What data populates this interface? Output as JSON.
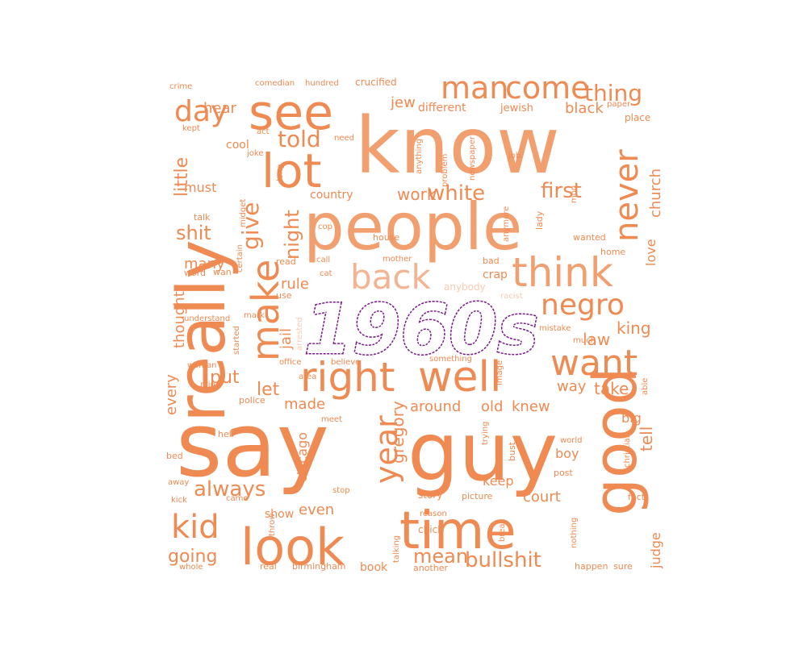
{
  "center_word": {
    "text": "1960s",
    "color": "#7a1a8c"
  },
  "palette": {
    "dark": "#ee8a52",
    "mid": "#f19f6e",
    "light": "#f4b493",
    "pale": "#f8cbb4"
  },
  "words": [
    {
      "text": "know",
      "tone": "mid"
    },
    {
      "text": "people",
      "tone": "mid"
    },
    {
      "text": "say",
      "tone": "dark"
    },
    {
      "text": "guy",
      "tone": "dark"
    },
    {
      "text": "see",
      "tone": "dark"
    },
    {
      "text": "really",
      "tone": "dark"
    },
    {
      "text": "look",
      "tone": "dark"
    },
    {
      "text": "time",
      "tone": "dark"
    },
    {
      "text": "good",
      "tone": "dark"
    },
    {
      "text": "lot",
      "tone": "dark"
    },
    {
      "text": "think",
      "tone": "mid"
    },
    {
      "text": "right",
      "tone": "dark"
    },
    {
      "text": "well",
      "tone": "dark"
    },
    {
      "text": "want",
      "tone": "dark"
    },
    {
      "text": "back",
      "tone": "light"
    },
    {
      "text": "make",
      "tone": "dark"
    },
    {
      "text": "man",
      "tone": "dark"
    },
    {
      "text": "come",
      "tone": "dark"
    },
    {
      "text": "day",
      "tone": "dark"
    },
    {
      "text": "negro",
      "tone": "dark"
    },
    {
      "text": "never",
      "tone": "dark"
    },
    {
      "text": "kid",
      "tone": "dark"
    },
    {
      "text": "year",
      "tone": "dark"
    },
    {
      "text": "give",
      "tone": "dark"
    },
    {
      "text": "told",
      "tone": "dark"
    },
    {
      "text": "thing",
      "tone": "dark"
    },
    {
      "text": "bullshit",
      "tone": "dark"
    },
    {
      "text": "work",
      "tone": "dark"
    },
    {
      "text": "white",
      "tone": "dark"
    },
    {
      "text": "first",
      "tone": "dark"
    },
    {
      "text": "always",
      "tone": "dark"
    },
    {
      "text": "mean",
      "tone": "dark"
    },
    {
      "text": "night",
      "tone": "dark"
    },
    {
      "text": "shit",
      "tone": "dark"
    },
    {
      "text": "little",
      "tone": "dark"
    },
    {
      "text": "let",
      "tone": "dark"
    },
    {
      "text": "put",
      "tone": "dark"
    },
    {
      "text": "going",
      "tone": "dark"
    },
    {
      "text": "law",
      "tone": "dark"
    },
    {
      "text": "king",
      "tone": "dark"
    },
    {
      "text": "take",
      "tone": "dark"
    },
    {
      "text": "tell",
      "tone": "dark"
    },
    {
      "text": "gregory",
      "tone": "dark"
    },
    {
      "text": "around",
      "tone": "dark"
    },
    {
      "text": "old",
      "tone": "dark"
    },
    {
      "text": "knew",
      "tone": "dark"
    },
    {
      "text": "court",
      "tone": "dark"
    },
    {
      "text": "many",
      "tone": "dark"
    },
    {
      "text": "every",
      "tone": "dark"
    },
    {
      "text": "thought",
      "tone": "dark"
    },
    {
      "text": "rule",
      "tone": "dark"
    },
    {
      "text": "jail",
      "tone": "dark"
    },
    {
      "text": "made",
      "tone": "dark"
    },
    {
      "text": "chicago",
      "tone": "dark"
    },
    {
      "text": "even",
      "tone": "dark"
    },
    {
      "text": "keep",
      "tone": "dark"
    },
    {
      "text": "way",
      "tone": "dark"
    },
    {
      "text": "black",
      "tone": "dark"
    },
    {
      "text": "jew",
      "tone": "dark"
    },
    {
      "text": "hear",
      "tone": "dark"
    },
    {
      "text": "church",
      "tone": "dark"
    },
    {
      "text": "love",
      "tone": "dark"
    },
    {
      "text": "judge",
      "tone": "dark"
    },
    {
      "text": "big",
      "tone": "dark"
    },
    {
      "text": "boy",
      "tone": "dark"
    },
    {
      "text": "must",
      "tone": "dark"
    },
    {
      "text": "country",
      "tone": "dark"
    },
    {
      "text": "cool",
      "tone": "dark"
    },
    {
      "text": "crap",
      "tone": "dark"
    },
    {
      "text": "show",
      "tone": "dark"
    },
    {
      "text": "book",
      "tone": "dark"
    },
    {
      "text": "story",
      "tone": "dark"
    },
    {
      "text": "chick",
      "tone": "dark"
    },
    {
      "text": "different",
      "tone": "dark"
    },
    {
      "text": "jewish",
      "tone": "dark"
    },
    {
      "text": "crime",
      "tone": "dark"
    },
    {
      "text": "comedian",
      "tone": "dark"
    },
    {
      "text": "hundred",
      "tone": "dark"
    },
    {
      "text": "crucified",
      "tone": "dark"
    },
    {
      "text": "paper",
      "tone": "dark"
    },
    {
      "text": "kept",
      "tone": "dark"
    },
    {
      "text": "act",
      "tone": "dark"
    },
    {
      "text": "need",
      "tone": "dark"
    },
    {
      "text": "joke",
      "tone": "dark"
    },
    {
      "text": "place",
      "tone": "dark"
    },
    {
      "text": "anything",
      "tone": "dark"
    },
    {
      "text": "problem",
      "tone": "dark"
    },
    {
      "text": "newspaper",
      "tone": "dark"
    },
    {
      "text": "job",
      "tone": "dark"
    },
    {
      "text": "long",
      "tone": "dark"
    },
    {
      "text": "talk",
      "tone": "dark"
    },
    {
      "text": "midget",
      "tone": "dark"
    },
    {
      "text": "certain",
      "tone": "dark"
    },
    {
      "text": "cop",
      "tone": "dark"
    },
    {
      "text": "house",
      "tone": "dark"
    },
    {
      "text": "anymore",
      "tone": "dark"
    },
    {
      "text": "lady",
      "tone": "dark"
    },
    {
      "text": "mon",
      "tone": "dark"
    },
    {
      "text": "wanted",
      "tone": "dark"
    },
    {
      "text": "home",
      "tone": "dark"
    },
    {
      "text": "read",
      "tone": "dark"
    },
    {
      "text": "call",
      "tone": "dark"
    },
    {
      "text": "cat",
      "tone": "dark"
    },
    {
      "text": "mother",
      "tone": "dark"
    },
    {
      "text": "bad",
      "tone": "dark"
    },
    {
      "text": "word",
      "tone": "dark"
    },
    {
      "text": "wan",
      "tone": "dark"
    },
    {
      "text": "anybody",
      "tone": "pale"
    },
    {
      "text": "use",
      "tone": "dark"
    },
    {
      "text": "racist",
      "tone": "pale"
    },
    {
      "text": "mark",
      "tone": "dark"
    },
    {
      "text": "understand",
      "tone": "dark"
    },
    {
      "text": "arrested",
      "tone": "pale"
    },
    {
      "text": "mistake",
      "tone": "dark"
    },
    {
      "text": "much",
      "tone": "dark"
    },
    {
      "text": "started",
      "tone": "dark"
    },
    {
      "text": "office",
      "tone": "dark"
    },
    {
      "text": "believe",
      "tone": "dark"
    },
    {
      "text": "something",
      "tone": "dark"
    },
    {
      "text": "woman",
      "tone": "dark"
    },
    {
      "text": "area",
      "tone": "dark"
    },
    {
      "text": "image",
      "tone": "dark"
    },
    {
      "text": "able",
      "tone": "dark"
    },
    {
      "text": "mind",
      "tone": "dark"
    },
    {
      "text": "police",
      "tone": "dark"
    },
    {
      "text": "meet",
      "tone": "dark"
    },
    {
      "text": "hell",
      "tone": "dark"
    },
    {
      "text": "trying",
      "tone": "dark"
    },
    {
      "text": "bust",
      "tone": "dark"
    },
    {
      "text": "world",
      "tone": "dark"
    },
    {
      "text": "christian",
      "tone": "dark"
    },
    {
      "text": "bed",
      "tone": "dark"
    },
    {
      "text": "post",
      "tone": "dark"
    },
    {
      "text": "away",
      "tone": "dark"
    },
    {
      "text": "stop",
      "tone": "dark"
    },
    {
      "text": "picture",
      "tone": "dark"
    },
    {
      "text": "fact",
      "tone": "dark"
    },
    {
      "text": "kick",
      "tone": "dark"
    },
    {
      "text": "came",
      "tone": "dark"
    },
    {
      "text": "reason",
      "tone": "dark"
    },
    {
      "text": "throw",
      "tone": "dark"
    },
    {
      "text": "break",
      "tone": "dark"
    },
    {
      "text": "nothing",
      "tone": "dark"
    },
    {
      "text": "talking",
      "tone": "dark"
    },
    {
      "text": "whole",
      "tone": "dark"
    },
    {
      "text": "real",
      "tone": "dark"
    },
    {
      "text": "birmingham",
      "tone": "dark"
    },
    {
      "text": "another",
      "tone": "dark"
    },
    {
      "text": "happen",
      "tone": "dark"
    },
    {
      "text": "sure",
      "tone": "dark"
    }
  ]
}
